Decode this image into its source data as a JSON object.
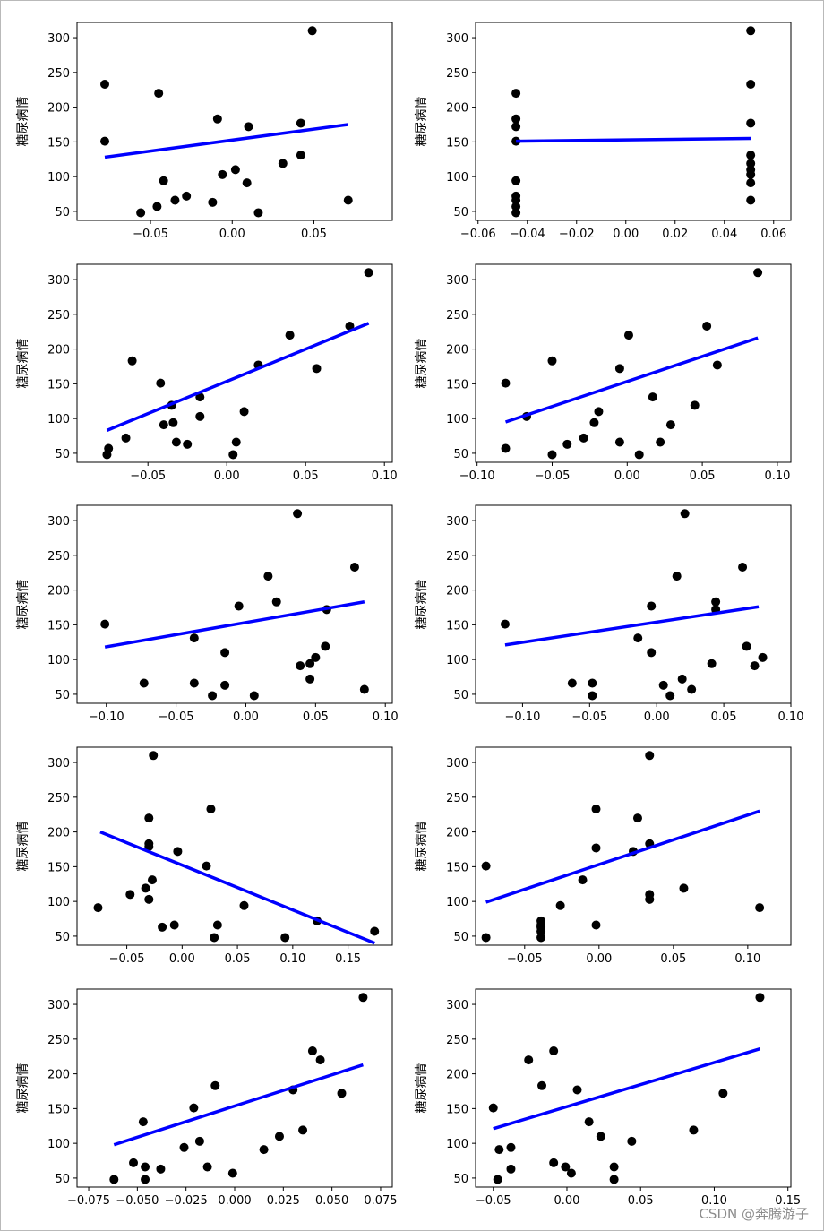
{
  "figure": {
    "watermark": "CSDN @奔腾游子",
    "ylabel_text": "糖尿病情"
  },
  "chart_data": [
    {
      "type": "scatter",
      "title": "",
      "xlabel": "",
      "ylabel": "糖尿病情",
      "xlim": [
        -0.095,
        0.098
      ],
      "ylim": [
        37,
        322
      ],
      "xticks": [
        -0.05,
        0.0,
        0.05
      ],
      "xtick_labels": [
        "−0.05",
        "0.00",
        "0.05"
      ],
      "yticks": [
        50,
        100,
        150,
        200,
        250,
        300
      ],
      "ytick_labels": [
        "50",
        "100",
        "150",
        "200",
        "250",
        "300"
      ],
      "points": [
        [
          -0.078,
          233
        ],
        [
          -0.078,
          151
        ],
        [
          -0.056,
          48
        ],
        [
          -0.046,
          57
        ],
        [
          -0.045,
          220
        ],
        [
          -0.042,
          94
        ],
        [
          -0.035,
          66
        ],
        [
          -0.028,
          72
        ],
        [
          -0.012,
          63
        ],
        [
          -0.009,
          183
        ],
        [
          -0.006,
          103
        ],
        [
          0.002,
          110
        ],
        [
          0.009,
          91
        ],
        [
          0.01,
          172
        ],
        [
          0.016,
          48
        ],
        [
          0.031,
          119
        ],
        [
          0.042,
          177
        ],
        [
          0.042,
          131
        ],
        [
          0.049,
          310
        ],
        [
          0.071,
          66
        ]
      ],
      "fit_line": [
        [
          -0.078,
          128
        ],
        [
          0.071,
          175
        ]
      ]
    },
    {
      "type": "scatter",
      "title": "",
      "xlabel": "",
      "ylabel": "糖尿病情",
      "xlim": [
        -0.061,
        0.067
      ],
      "ylim": [
        37,
        322
      ],
      "xticks": [
        -0.06,
        -0.04,
        -0.02,
        0.0,
        0.02,
        0.04,
        0.06
      ],
      "xtick_labels": [
        "−0.06",
        "−0.04",
        "−0.02",
        "0.00",
        "0.02",
        "0.04",
        "0.06"
      ],
      "yticks": [
        50,
        100,
        150,
        200,
        250,
        300
      ],
      "ytick_labels": [
        "50",
        "100",
        "150",
        "200",
        "250",
        "300"
      ],
      "points": [
        [
          -0.0446,
          220
        ],
        [
          -0.0446,
          183
        ],
        [
          -0.0446,
          172
        ],
        [
          -0.0446,
          151
        ],
        [
          -0.0446,
          94
        ],
        [
          -0.0446,
          72
        ],
        [
          -0.0446,
          66
        ],
        [
          -0.0446,
          57
        ],
        [
          -0.0446,
          48
        ],
        [
          0.0507,
          310
        ],
        [
          0.0507,
          233
        ],
        [
          0.0507,
          177
        ],
        [
          0.0507,
          131
        ],
        [
          0.0507,
          119
        ],
        [
          0.0507,
          110
        ],
        [
          0.0507,
          103
        ],
        [
          0.0507,
          91
        ],
        [
          0.0507,
          66
        ]
      ],
      "fit_line": [
        [
          -0.0446,
          151
        ],
        [
          0.0507,
          155
        ]
      ]
    },
    {
      "type": "scatter",
      "title": "",
      "xlabel": "",
      "ylabel": "糖尿病情",
      "xlim": [
        -0.095,
        0.105
      ],
      "ylim": [
        37,
        322
      ],
      "xticks": [
        -0.05,
        0.0,
        0.05,
        0.1
      ],
      "xtick_labels": [
        "−0.05",
        "0.00",
        "0.05",
        "0.10"
      ],
      "yticks": [
        50,
        100,
        150,
        200,
        250,
        300
      ],
      "ytick_labels": [
        "50",
        "100",
        "150",
        "200",
        "250",
        "300"
      ],
      "points": [
        [
          -0.076,
          48
        ],
        [
          -0.075,
          57
        ],
        [
          -0.064,
          72
        ],
        [
          -0.06,
          183
        ],
        [
          -0.042,
          151
        ],
        [
          -0.04,
          91
        ],
        [
          -0.035,
          119
        ],
        [
          -0.034,
          94
        ],
        [
          -0.032,
          66
        ],
        [
          -0.025,
          63
        ],
        [
          -0.017,
          131
        ],
        [
          -0.017,
          103
        ],
        [
          0.004,
          48
        ],
        [
          0.006,
          66
        ],
        [
          0.011,
          110
        ],
        [
          0.02,
          177
        ],
        [
          0.04,
          220
        ],
        [
          0.057,
          172
        ],
        [
          0.078,
          233
        ],
        [
          0.09,
          310
        ]
      ],
      "fit_line": [
        [
          -0.076,
          83
        ],
        [
          0.09,
          237
        ]
      ]
    },
    {
      "type": "scatter",
      "title": "",
      "xlabel": "",
      "ylabel": "糖尿病情",
      "xlim": [
        -0.101,
        0.109
      ],
      "ylim": [
        37,
        322
      ],
      "xticks": [
        -0.1,
        -0.05,
        0.0,
        0.05,
        0.1
      ],
      "xtick_labels": [
        "−0.10",
        "−0.05",
        "0.00",
        "0.05",
        "0.10"
      ],
      "yticks": [
        50,
        100,
        150,
        200,
        250,
        300
      ],
      "ytick_labels": [
        "50",
        "100",
        "150",
        "200",
        "250",
        "300"
      ],
      "points": [
        [
          -0.081,
          57
        ],
        [
          -0.081,
          151
        ],
        [
          -0.067,
          103
        ],
        [
          -0.05,
          48
        ],
        [
          -0.05,
          183
        ],
        [
          -0.04,
          63
        ],
        [
          -0.029,
          72
        ],
        [
          -0.022,
          94
        ],
        [
          -0.019,
          110
        ],
        [
          -0.005,
          66
        ],
        [
          -0.005,
          172
        ],
        [
          0.001,
          220
        ],
        [
          0.008,
          48
        ],
        [
          0.017,
          131
        ],
        [
          0.022,
          66
        ],
        [
          0.029,
          91
        ],
        [
          0.045,
          119
        ],
        [
          0.053,
          233
        ],
        [
          0.06,
          177
        ],
        [
          0.087,
          310
        ]
      ],
      "fit_line": [
        [
          -0.081,
          95
        ],
        [
          0.087,
          216
        ]
      ]
    },
    {
      "type": "scatter",
      "title": "",
      "xlabel": "",
      "ylabel": "糖尿病情",
      "xlim": [
        -0.121,
        0.105
      ],
      "ylim": [
        37,
        322
      ],
      "xticks": [
        -0.1,
        -0.05,
        0.0,
        0.05,
        0.1
      ],
      "xtick_labels": [
        "−0.10",
        "−0.05",
        "0.00",
        "0.05",
        "0.10"
      ],
      "yticks": [
        50,
        100,
        150,
        200,
        250,
        300
      ],
      "ytick_labels": [
        "50",
        "100",
        "150",
        "200",
        "250",
        "300"
      ],
      "points": [
        [
          -0.101,
          151
        ],
        [
          -0.073,
          66
        ],
        [
          -0.037,
          131
        ],
        [
          -0.037,
          66
        ],
        [
          -0.024,
          48
        ],
        [
          -0.015,
          110
        ],
        [
          -0.015,
          63
        ],
        [
          -0.005,
          177
        ],
        [
          0.006,
          48
        ],
        [
          0.016,
          220
        ],
        [
          0.022,
          183
        ],
        [
          0.037,
          310
        ],
        [
          0.039,
          91
        ],
        [
          0.046,
          94
        ],
        [
          0.046,
          72
        ],
        [
          0.05,
          103
        ],
        [
          0.057,
          119
        ],
        [
          0.058,
          172
        ],
        [
          0.078,
          233
        ],
        [
          0.085,
          57
        ]
      ],
      "fit_line": [
        [
          -0.101,
          118
        ],
        [
          0.085,
          183
        ]
      ]
    },
    {
      "type": "scatter",
      "title": "",
      "xlabel": "",
      "ylabel": "糖尿病情",
      "xlim": [
        -0.135,
        0.1
      ],
      "ylim": [
        37,
        322
      ],
      "xticks": [
        -0.1,
        -0.05,
        0.0,
        0.05,
        0.1
      ],
      "xtick_labels": [
        "−0.10",
        "−0.05",
        "0.00",
        "0.05",
        "0.10"
      ],
      "yticks": [
        50,
        100,
        150,
        200,
        250,
        300
      ],
      "ytick_labels": [
        "50",
        "100",
        "150",
        "200",
        "250",
        "300"
      ],
      "points": [
        [
          -0.113,
          151
        ],
        [
          -0.063,
          66
        ],
        [
          -0.048,
          48
        ],
        [
          -0.048,
          66
        ],
        [
          -0.014,
          131
        ],
        [
          -0.004,
          110
        ],
        [
          -0.004,
          177
        ],
        [
          0.005,
          63
        ],
        [
          0.01,
          48
        ],
        [
          0.015,
          220
        ],
        [
          0.019,
          72
        ],
        [
          0.021,
          310
        ],
        [
          0.026,
          57
        ],
        [
          0.041,
          94
        ],
        [
          0.044,
          183
        ],
        [
          0.044,
          172
        ],
        [
          0.064,
          233
        ],
        [
          0.067,
          119
        ],
        [
          0.073,
          91
        ],
        [
          0.079,
          103
        ]
      ],
      "fit_line": [
        [
          -0.113,
          121
        ],
        [
          0.076,
          176
        ]
      ]
    },
    {
      "type": "scatter",
      "title": "",
      "xlabel": "",
      "ylabel": "糖尿病情",
      "xlim": [
        -0.095,
        0.19
      ],
      "ylim": [
        37,
        322
      ],
      "xticks": [
        -0.05,
        0.0,
        0.05,
        0.1,
        0.15
      ],
      "xtick_labels": [
        "−0.05",
        "0.00",
        "0.05",
        "0.10",
        "0.15"
      ],
      "yticks": [
        50,
        100,
        150,
        200,
        250,
        300
      ],
      "ytick_labels": [
        "50",
        "100",
        "150",
        "200",
        "250",
        "300"
      ],
      "points": [
        [
          -0.076,
          91
        ],
        [
          -0.047,
          110
        ],
        [
          -0.033,
          119
        ],
        [
          -0.03,
          103
        ],
        [
          -0.03,
          183
        ],
        [
          -0.03,
          179
        ],
        [
          -0.03,
          220
        ],
        [
          -0.027,
          131
        ],
        [
          -0.026,
          310
        ],
        [
          -0.018,
          63
        ],
        [
          -0.007,
          66
        ],
        [
          -0.004,
          172
        ],
        [
          0.022,
          151
        ],
        [
          0.026,
          233
        ],
        [
          0.029,
          48
        ],
        [
          0.032,
          66
        ],
        [
          0.056,
          94
        ],
        [
          0.093,
          48
        ],
        [
          0.122,
          72
        ],
        [
          0.174,
          57
        ]
      ],
      "fit_line": [
        [
          -0.074,
          200
        ],
        [
          0.174,
          40
        ]
      ]
    },
    {
      "type": "scatter",
      "title": "",
      "xlabel": "",
      "ylabel": "糖尿病情",
      "xlim": [
        -0.083,
        0.129
      ],
      "ylim": [
        37,
        322
      ],
      "xticks": [
        -0.05,
        0.0,
        0.05,
        0.1
      ],
      "xtick_labels": [
        "−0.05",
        "0.00",
        "0.05",
        "0.10"
      ],
      "yticks": [
        50,
        100,
        150,
        200,
        250,
        300
      ],
      "ytick_labels": [
        "50",
        "100",
        "150",
        "200",
        "250",
        "300"
      ],
      "points": [
        [
          -0.076,
          48
        ],
        [
          -0.076,
          151
        ],
        [
          -0.039,
          48
        ],
        [
          -0.039,
          57
        ],
        [
          -0.039,
          63
        ],
        [
          -0.039,
          72
        ],
        [
          -0.039,
          66
        ],
        [
          -0.026,
          94
        ],
        [
          -0.011,
          131
        ],
        [
          -0.002,
          66
        ],
        [
          -0.002,
          177
        ],
        [
          -0.002,
          233
        ],
        [
          0.023,
          172
        ],
        [
          0.026,
          220
        ],
        [
          0.034,
          310
        ],
        [
          0.034,
          110
        ],
        [
          0.034,
          103
        ],
        [
          0.034,
          183
        ],
        [
          0.057,
          119
        ],
        [
          0.108,
          91
        ]
      ],
      "fit_line": [
        [
          -0.076,
          99
        ],
        [
          0.108,
          230
        ]
      ]
    },
    {
      "type": "scatter",
      "title": "",
      "xlabel": "",
      "ylabel": "糖尿病情",
      "xlim": [
        -0.081,
        0.081
      ],
      "ylim": [
        37,
        322
      ],
      "xticks": [
        -0.075,
        -0.05,
        -0.025,
        0.0,
        0.025,
        0.05,
        0.075
      ],
      "xtick_labels": [
        "−0.075",
        "−0.050",
        "−0.025",
        "0.000",
        "0.025",
        "0.050",
        "0.075"
      ],
      "yticks": [
        50,
        100,
        150,
        200,
        250,
        300
      ],
      "ytick_labels": [
        "50",
        "100",
        "150",
        "200",
        "250",
        "300"
      ],
      "points": [
        [
          -0.062,
          48
        ],
        [
          -0.052,
          72
        ],
        [
          -0.047,
          131
        ],
        [
          -0.046,
          66
        ],
        [
          -0.046,
          48
        ],
        [
          -0.038,
          63
        ],
        [
          -0.026,
          94
        ],
        [
          -0.021,
          151
        ],
        [
          -0.018,
          103
        ],
        [
          -0.014,
          66
        ],
        [
          -0.01,
          183
        ],
        [
          -0.001,
          57
        ],
        [
          0.015,
          91
        ],
        [
          0.023,
          110
        ],
        [
          0.03,
          177
        ],
        [
          0.035,
          119
        ],
        [
          0.04,
          233
        ],
        [
          0.044,
          220
        ],
        [
          0.055,
          172
        ],
        [
          0.066,
          310
        ]
      ],
      "fit_line": [
        [
          -0.062,
          98
        ],
        [
          0.066,
          213
        ]
      ]
    },
    {
      "type": "scatter",
      "title": "",
      "xlabel": "",
      "ylabel": "糖尿病情",
      "xlim": [
        -0.062,
        0.152
      ],
      "ylim": [
        37,
        322
      ],
      "xticks": [
        -0.05,
        0.0,
        0.05,
        0.1,
        0.15
      ],
      "xtick_labels": [
        "−0.05",
        "0.00",
        "0.05",
        "0.10",
        "0.15"
      ],
      "yticks": [
        50,
        100,
        150,
        200,
        250,
        300
      ],
      "ytick_labels": [
        "50",
        "100",
        "150",
        "200",
        "250",
        "300"
      ],
      "points": [
        [
          -0.05,
          151
        ],
        [
          -0.047,
          48
        ],
        [
          -0.046,
          91
        ],
        [
          -0.038,
          63
        ],
        [
          -0.038,
          94
        ],
        [
          -0.026,
          220
        ],
        [
          -0.017,
          183
        ],
        [
          -0.009,
          233
        ],
        [
          -0.009,
          72
        ],
        [
          -0.001,
          66
        ],
        [
          0.003,
          57
        ],
        [
          0.007,
          177
        ],
        [
          0.015,
          131
        ],
        [
          0.023,
          110
        ],
        [
          0.032,
          66
        ],
        [
          0.032,
          48
        ],
        [
          0.044,
          103
        ],
        [
          0.086,
          119
        ],
        [
          0.106,
          172
        ],
        [
          0.131,
          310
        ]
      ],
      "fit_line": [
        [
          -0.05,
          121
        ],
        [
          0.131,
          236
        ]
      ]
    }
  ]
}
